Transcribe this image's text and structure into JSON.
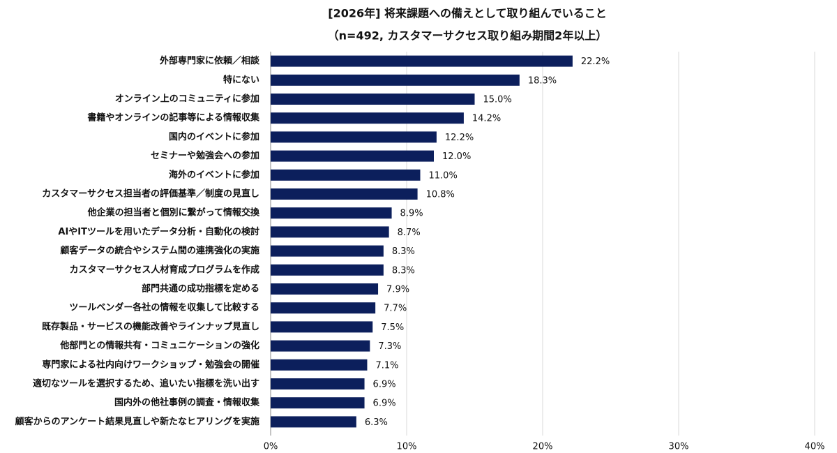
{
  "chart_data": {
    "type": "barh",
    "title": "[2026年] 将来課題への備えとして取り組んでいること",
    "subtitle": "（n=492, カスタマーサクセス取り組み期間2年以上）",
    "categories": [
      "外部専門家に依頼／相談",
      "特にない",
      "オンライン上のコミュニティに参加",
      "書籍やオンラインの記事等による情報収集",
      "国内のイベントに参加",
      "セミナーや勉強会への参加",
      "海外のイベントに参加",
      "カスタマーサクセス担当者の評価基準／制度の見直し",
      "他企業の担当者と個別に繋がって情報交換",
      "AIやITツールを用いたデータ分析・自動化の検討",
      "顧客データの統合やシステム間の連携強化の実施",
      "カスタマーサクセス人材育成プログラムを作成",
      "部門共通の成功指標を定める",
      "ツールベンダー各社の情報を収集して比較する",
      "既存製品・サービスの機能改善やラインナップ見直し",
      "他部門との情報共有・コミュニケーションの強化",
      "専門家による社内向けワークショップ・勉強会の開催",
      "適切なツールを選択するため、追いたい指標を洗い出す",
      "国内外の他社事例の調査・情報収集",
      "顧客からのアンケート結果見直しや新たなヒアリングを実施"
    ],
    "values": [
      22.2,
      18.3,
      15.0,
      14.2,
      12.2,
      12.0,
      11.0,
      10.8,
      8.9,
      8.7,
      8.3,
      8.3,
      7.9,
      7.7,
      7.5,
      7.3,
      7.1,
      6.9,
      6.9,
      6.3
    ],
    "value_labels": [
      "22.2%",
      "18.3%",
      "15.0%",
      "14.2%",
      "12.2%",
      "12.0%",
      "11.0%",
      "10.8%",
      "8.9%",
      "8.7%",
      "8.3%",
      "8.3%",
      "7.9%",
      "7.7%",
      "7.5%",
      "7.3%",
      "7.1%",
      "6.9%",
      "6.9%",
      "6.3%"
    ],
    "color": "#0c1f5c",
    "xlim": [
      0,
      40
    ],
    "xticks": [
      {
        "value": 0,
        "label": "0%"
      },
      {
        "value": 10,
        "label": "10%"
      },
      {
        "value": 20,
        "label": "20%"
      },
      {
        "value": 30,
        "label": "30%"
      },
      {
        "value": 40,
        "label": "40%"
      }
    ],
    "grid": true
  }
}
